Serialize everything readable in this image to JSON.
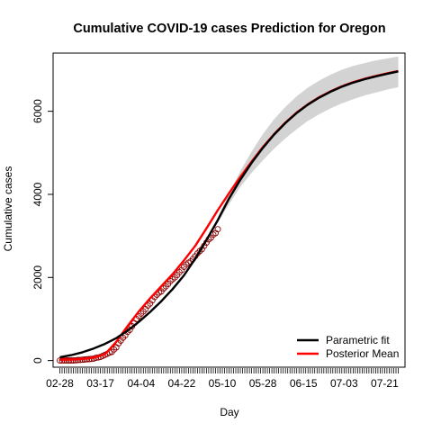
{
  "chart_data": {
    "type": "line",
    "title": "Cumulative COVID-19 cases Prediction for Oregon",
    "xlabel": "Day",
    "ylabel": "Cumulative cases",
    "x_tick_labels": [
      "02-28",
      "03-17",
      "04-04",
      "04-22",
      "05-10",
      "05-28",
      "06-15",
      "07-03",
      "07-21"
    ],
    "x_tick_days": [
      0,
      18,
      36,
      54,
      72,
      90,
      108,
      126,
      144
    ],
    "xlim": [
      -3,
      153
    ],
    "y_ticks": [
      0,
      2000,
      4000,
      6000
    ],
    "ylim": [
      -160,
      7400
    ],
    "grid": false,
    "legend_position": "bottom-right",
    "series": [
      {
        "name": "Parametric fit",
        "color": "#000000",
        "kind": "line",
        "x": [
          0,
          5,
          10,
          15,
          20,
          25,
          30,
          35,
          40,
          45,
          50,
          55,
          60,
          65,
          70,
          75,
          80,
          85,
          90,
          95,
          100,
          105,
          110,
          115,
          120,
          125,
          130,
          135,
          140,
          145,
          150
        ],
        "y": [
          80,
          130,
          200,
          290,
          400,
          540,
          720,
          930,
          1170,
          1430,
          1720,
          2050,
          2450,
          2900,
          3380,
          3900,
          4350,
          4760,
          5120,
          5440,
          5720,
          5960,
          6160,
          6330,
          6470,
          6590,
          6690,
          6770,
          6840,
          6900,
          6960
        ]
      },
      {
        "name": "Posterior Mean",
        "color": "#ff0000",
        "kind": "line",
        "x": [
          0,
          5,
          10,
          15,
          20,
          25,
          30,
          35,
          40,
          45,
          50,
          55,
          60,
          65,
          70,
          75,
          80,
          85,
          90,
          95,
          100,
          105,
          110,
          115,
          120,
          125,
          130,
          135,
          140,
          145,
          150
        ],
        "y": [
          20,
          25,
          40,
          70,
          150,
          450,
          830,
          1180,
          1500,
          1790,
          2080,
          2410,
          2760,
          3180,
          3620,
          4030,
          4420,
          4790,
          5140,
          5450,
          5730,
          5970,
          6170,
          6340,
          6480,
          6600,
          6700,
          6780,
          6850,
          6910,
          6970
        ]
      },
      {
        "name": "Credible band",
        "color": "#d3d3d3",
        "kind": "band",
        "x": [
          70,
          75,
          80,
          85,
          90,
          95,
          100,
          105,
          110,
          115,
          120,
          125,
          130,
          135,
          140,
          145,
          150
        ],
        "lower": [
          3320,
          3760,
          4180,
          4520,
          4820,
          5100,
          5350,
          5570,
          5770,
          5930,
          6070,
          6190,
          6290,
          6380,
          6450,
          6520,
          6580
        ],
        "upper": [
          3440,
          4020,
          4560,
          5030,
          5450,
          5810,
          6110,
          6360,
          6570,
          6740,
          6880,
          7000,
          7090,
          7160,
          7220,
          7270,
          7320
        ]
      },
      {
        "name": "Observed",
        "color": "#8b0000",
        "kind": "points",
        "x": [
          0,
          1,
          2,
          3,
          4,
          5,
          6,
          7,
          8,
          9,
          10,
          11,
          12,
          13,
          14,
          15,
          16,
          17,
          18,
          19,
          20,
          21,
          22,
          23,
          24,
          25,
          26,
          27,
          28,
          29,
          30,
          31,
          32,
          33,
          34,
          35,
          36,
          37,
          38,
          39,
          40,
          41,
          42,
          43,
          44,
          45,
          46,
          47,
          48,
          49,
          50,
          51,
          52,
          53,
          54,
          55,
          56,
          57,
          58,
          59,
          60,
          61,
          62,
          63,
          64,
          65,
          66,
          67,
          68,
          69,
          70
        ],
        "y": [
          1,
          1,
          1,
          2,
          3,
          3,
          3,
          7,
          14,
          15,
          19,
          24,
          30,
          36,
          39,
          47,
          65,
          75,
          88,
          114,
          137,
          161,
          191,
          209,
          266,
          316,
          414,
          479,
          548,
          606,
          690,
          736,
          826,
          899,
          999,
          1068,
          1132,
          1181,
          1239,
          1321,
          1371,
          1447,
          1527,
          1584,
          1633,
          1663,
          1736,
          1785,
          1844,
          1910,
          1956,
          2002,
          2059,
          2127,
          2177,
          2253,
          2311,
          2354,
          2385,
          2446,
          2510,
          2579,
          2635,
          2680,
          2759,
          2839,
          2916,
          2960,
          3030,
          3068,
          3160
        ]
      }
    ]
  }
}
